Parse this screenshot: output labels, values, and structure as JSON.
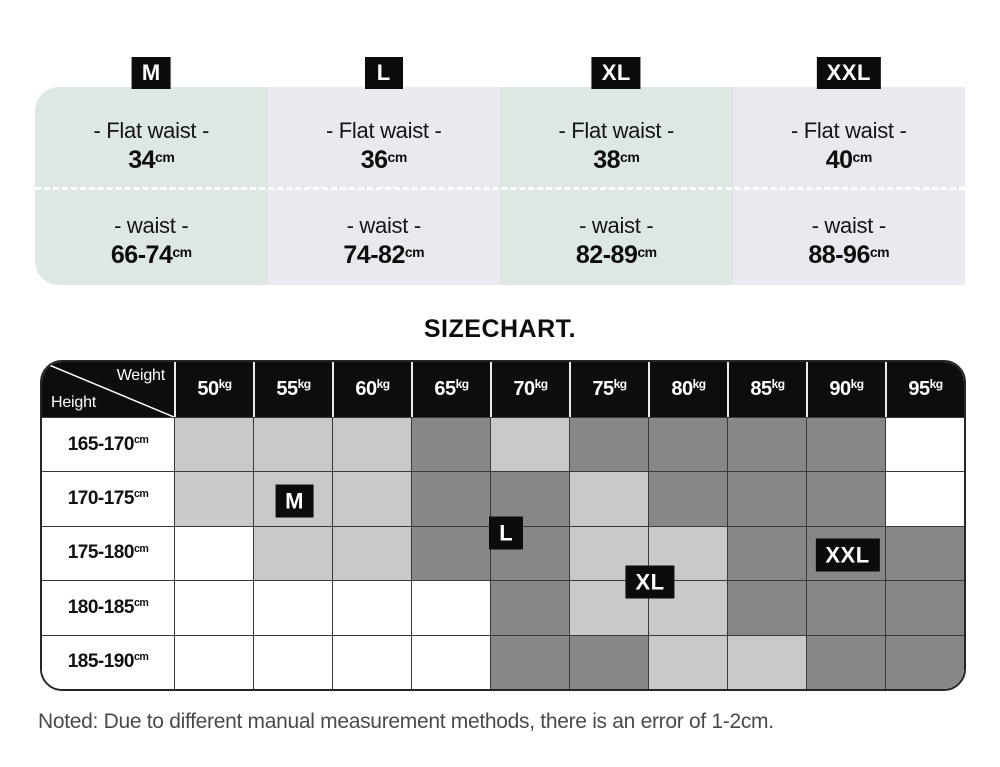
{
  "section_title": "SIZECHART.",
  "note": "Noted: Due to different manual measurement methods, there is an error of 1-2cm.",
  "colors": {
    "mint": "#dee8e3",
    "lavender": "#ebe9f0",
    "cell_light": "#c9c9c9",
    "cell_dark": "#878787",
    "cell_none": "#ffffff",
    "badge_bg": "#0c0c0c",
    "header_bg": "#0d0d0d"
  },
  "size_cards": {
    "cards": [
      {
        "size": "M",
        "flat_label": "- Flat waist -",
        "flat_value": "34",
        "flat_unit": "cm",
        "waist_label": "- waist -",
        "waist_value": "66-74",
        "waist_unit": "cm",
        "bg": "#dee8e3"
      },
      {
        "size": "L",
        "flat_label": "- Flat waist -",
        "flat_value": "36",
        "flat_unit": "cm",
        "waist_label": "- waist -",
        "waist_value": "74-82",
        "waist_unit": "cm",
        "bg": "#ebe9f0"
      },
      {
        "size": "XL",
        "flat_label": "- Flat waist -",
        "flat_value": "38",
        "flat_unit": "cm",
        "waist_label": "- waist -",
        "waist_value": "82-89",
        "waist_unit": "cm",
        "bg": "#dee8e3"
      },
      {
        "size": "XXL",
        "flat_label": "- Flat waist -",
        "flat_value": "40",
        "flat_unit": "cm",
        "waist_label": "- waist -",
        "waist_value": "88-96",
        "waist_unit": "cm",
        "bg": "#ebe9f0"
      }
    ]
  },
  "size_table": {
    "corner": {
      "top_right": "Weight",
      "bottom_left": "Height"
    },
    "weight_columns": [
      {
        "value": "50",
        "unit": "kg"
      },
      {
        "value": "55",
        "unit": "kg"
      },
      {
        "value": "60",
        "unit": "kg"
      },
      {
        "value": "65",
        "unit": "kg"
      },
      {
        "value": "70",
        "unit": "kg"
      },
      {
        "value": "75",
        "unit": "kg"
      },
      {
        "value": "80",
        "unit": "kg"
      },
      {
        "value": "85",
        "unit": "kg"
      },
      {
        "value": "90",
        "unit": "kg"
      },
      {
        "value": "95",
        "unit": "kg"
      }
    ],
    "rows": [
      {
        "label": "165-170",
        "unit": "cm",
        "cells": [
          "light",
          "light",
          "light",
          "dark",
          "light",
          "dark",
          "dark",
          "dark",
          "dark",
          "none"
        ]
      },
      {
        "label": "170-175",
        "unit": "cm",
        "cells": [
          "light",
          "light",
          "light",
          "dark",
          "dark",
          "light",
          "dark",
          "dark",
          "dark",
          "none"
        ]
      },
      {
        "label": "175-180",
        "unit": "cm",
        "cells": [
          "none",
          "light",
          "light",
          "dark",
          "dark",
          "light",
          "light",
          "dark",
          "dark",
          "dark"
        ]
      },
      {
        "label": "180-185",
        "unit": "cm",
        "cells": [
          "none",
          "none",
          "none",
          "none",
          "dark",
          "light",
          "light",
          "dark",
          "dark",
          "dark"
        ]
      },
      {
        "label": "185-190",
        "unit": "cm",
        "cells": [
          "none",
          "none",
          "none",
          "none",
          "dark",
          "dark",
          "light",
          "light",
          "dark",
          "dark"
        ]
      }
    ],
    "badges": [
      {
        "label": "M",
        "col_units": 1.5,
        "row_units": 1.5
      },
      {
        "label": "L",
        "col_units": 4.18,
        "row_units": 2.1
      },
      {
        "label": "XL",
        "col_units": 6.0,
        "row_units": 3.0
      },
      {
        "label": "XXL",
        "col_units": 8.5,
        "row_units": 2.5
      }
    ]
  },
  "chart_data": [
    {
      "type": "table",
      "title": "Size measurements",
      "columns": [
        "M",
        "L",
        "XL",
        "XXL"
      ],
      "rows": [
        {
          "label": "Flat waist (cm)",
          "values": [
            "34",
            "36",
            "38",
            "40"
          ]
        },
        {
          "label": "Waist (cm)",
          "values": [
            "66-74",
            "74-82",
            "82-89",
            "88-96"
          ]
        }
      ]
    },
    {
      "type": "heatmap",
      "title": "SIZECHART.",
      "xlabel": "Weight",
      "ylabel": "Height",
      "x": [
        "50kg",
        "55kg",
        "60kg",
        "65kg",
        "70kg",
        "75kg",
        "80kg",
        "85kg",
        "90kg",
        "95kg"
      ],
      "y": [
        "165-170cm",
        "170-175cm",
        "175-180cm",
        "180-185cm",
        "185-190cm"
      ],
      "values": [
        [
          "light",
          "light",
          "light",
          "dark",
          "light",
          "dark",
          "dark",
          "dark",
          "dark",
          "none"
        ],
        [
          "light",
          "light",
          "light",
          "dark",
          "dark",
          "light",
          "dark",
          "dark",
          "dark",
          "none"
        ],
        [
          "none",
          "light",
          "light",
          "dark",
          "dark",
          "light",
          "light",
          "dark",
          "dark",
          "dark"
        ],
        [
          "none",
          "none",
          "none",
          "none",
          "dark",
          "light",
          "light",
          "dark",
          "dark",
          "dark"
        ],
        [
          "none",
          "none",
          "none",
          "none",
          "dark",
          "dark",
          "light",
          "light",
          "dark",
          "dark"
        ]
      ],
      "annotations": [
        {
          "text": "M",
          "x": "55kg",
          "y": "170-175cm"
        },
        {
          "text": "L",
          "x": "70kg",
          "y": "170-175cm/175-180cm boundary"
        },
        {
          "text": "XL",
          "x": "75kg/80kg boundary",
          "y": "175-180cm/180-185cm boundary"
        },
        {
          "text": "XXL",
          "x": "90kg",
          "y": "175-180cm"
        }
      ],
      "legend": "off",
      "grid": "on"
    }
  ]
}
